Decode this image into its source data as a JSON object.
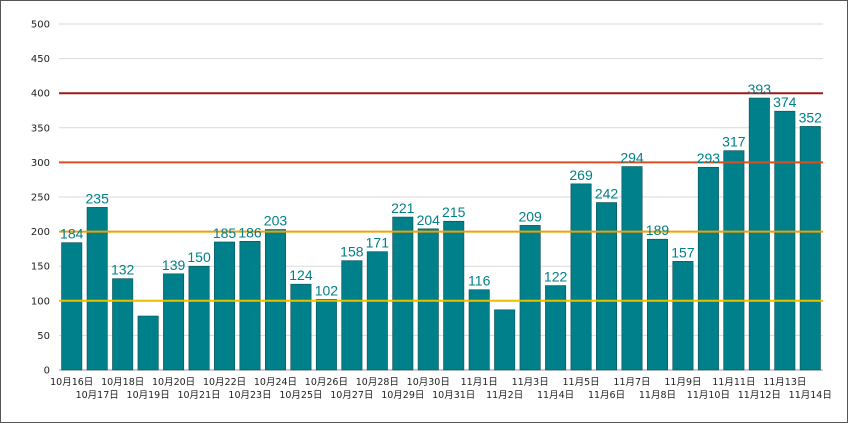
{
  "chart_data": {
    "type": "bar",
    "title": "",
    "xlabel": "",
    "ylabel": "",
    "ylim": [
      0,
      500
    ],
    "yticks": [
      0,
      50,
      100,
      150,
      200,
      250,
      300,
      350,
      400,
      450,
      500
    ],
    "grid": true,
    "legend": "none",
    "categories": [
      "10月16日",
      "10月17日",
      "10月18日",
      "10月19日",
      "10月20日",
      "10月21日",
      "10月22日",
      "10月23日",
      "10月24日",
      "10月25日",
      "10月26日",
      "10月27日",
      "10月28日",
      "10月29日",
      "10月30日",
      "10月31日",
      "11月1日",
      "11月2日",
      "11月3日",
      "11月4日",
      "11月5日",
      "11月6日",
      "11月7日",
      "11月8日",
      "11月9日",
      "11月10日",
      "11月11日",
      "11月12日",
      "11月13日",
      "11月14日"
    ],
    "values": [
      184,
      235,
      132,
      78,
      139,
      150,
      185,
      186,
      203,
      124,
      102,
      158,
      171,
      221,
      204,
      215,
      116,
      87,
      209,
      122,
      269,
      242,
      294,
      189,
      157,
      293,
      317,
      393,
      374,
      352
    ],
    "reference_lines": [
      {
        "value": 100,
        "color": "#e8c000"
      },
      {
        "value": 200,
        "color": "#f0a000"
      },
      {
        "value": 300,
        "color": "#d85020"
      },
      {
        "value": 400,
        "color": "#a01818"
      }
    ],
    "colors": {
      "bar": "#00808a",
      "bar_stroke": "#0a4f55",
      "label": "#00808a"
    }
  }
}
